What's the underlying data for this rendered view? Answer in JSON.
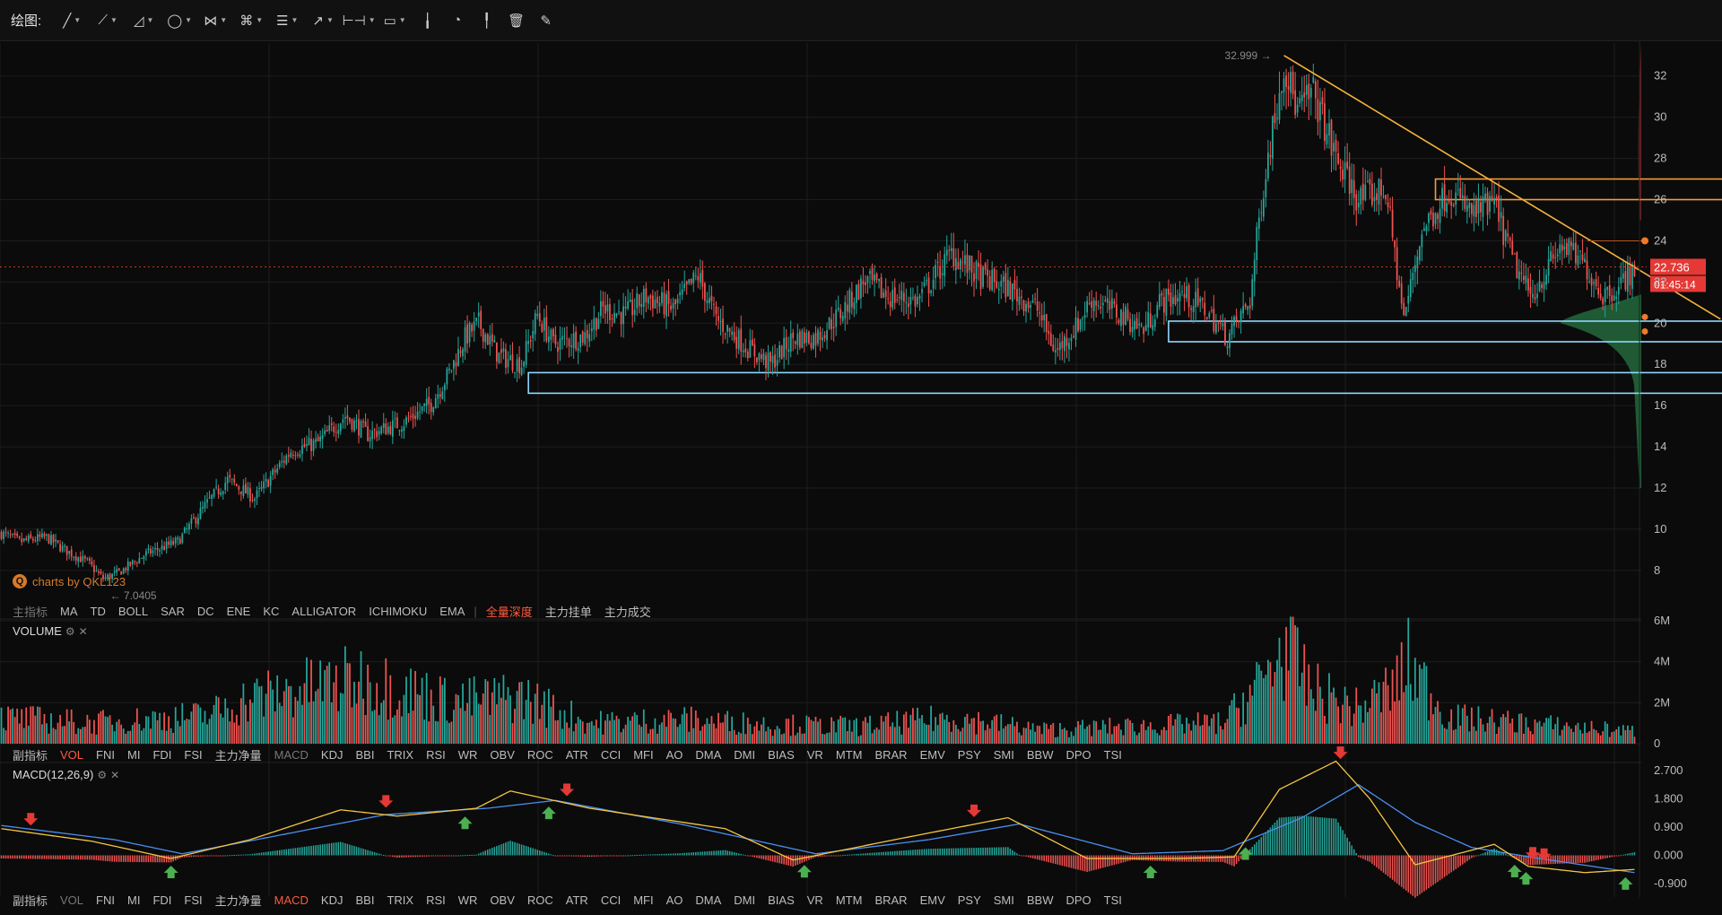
{
  "toolbar": {
    "label": "绘图:",
    "tools": [
      {
        "name": "line-tool-icon",
        "glyph": "╱",
        "caret": true
      },
      {
        "name": "multi-point-tool-icon",
        "glyph": "⟋",
        "caret": true
      },
      {
        "name": "channel-tool-icon",
        "glyph": "◿",
        "caret": true
      },
      {
        "name": "ellipse-tool-icon",
        "glyph": "◯",
        "caret": true
      },
      {
        "name": "wave-tool-icon",
        "glyph": "⋈",
        "caret": true
      },
      {
        "name": "pattern-tool-icon",
        "glyph": "⌘",
        "caret": true
      },
      {
        "name": "fibonacci-tool-icon",
        "glyph": "☰",
        "caret": true
      },
      {
        "name": "arrow-tool-icon",
        "glyph": "↗",
        "caret": true
      },
      {
        "name": "measure-tool-icon",
        "glyph": "⊢⊣",
        "caret": true
      },
      {
        "name": "comment-tool-icon",
        "glyph": "▭",
        "caret": true
      },
      {
        "name": "candle-style-icon",
        "glyph": "╽",
        "caret": false
      },
      {
        "name": "chart-settings-icon",
        "glyph": "◔",
        "caret": false
      },
      {
        "name": "bar-style-icon",
        "glyph": "╿",
        "caret": false
      },
      {
        "name": "trash-icon",
        "glyph": "🗑",
        "caret": false
      },
      {
        "name": "pen-icon",
        "glyph": "✎",
        "caret": false
      }
    ]
  },
  "chart_data": [
    {
      "type": "candlestick",
      "title": "",
      "ylim": [
        6.6,
        33.6
      ],
      "y_ticks": [
        "32",
        "30",
        "28",
        "26",
        "24",
        "22",
        "20",
        "18",
        "16",
        "14",
        "12",
        "10",
        "8"
      ],
      "high_label": "32.999",
      "low_label": "7.0405",
      "current_price": "22.736",
      "countdown": "01:45:14",
      "ohlc_anchors": [
        [
          0,
          9.8
        ],
        [
          8,
          9.4
        ],
        [
          20,
          9.6
        ],
        [
          28,
          9.0
        ],
        [
          38,
          8.4
        ],
        [
          45,
          7.6
        ],
        [
          52,
          7.9
        ],
        [
          64,
          8.8
        ],
        [
          78,
          9.4
        ],
        [
          92,
          11.4
        ],
        [
          100,
          12.4
        ],
        [
          112,
          11.5
        ],
        [
          128,
          13.8
        ],
        [
          140,
          14.2
        ],
        [
          152,
          15.5
        ],
        [
          162,
          14.6
        ],
        [
          178,
          15.2
        ],
        [
          190,
          16.1
        ],
        [
          198,
          17.6
        ],
        [
          205,
          19.3
        ],
        [
          211,
          20.0
        ],
        [
          220,
          18.4
        ],
        [
          230,
          18.0
        ],
        [
          237,
          20.4
        ],
        [
          244,
          19.0
        ],
        [
          258,
          19.4
        ],
        [
          266,
          20.7
        ],
        [
          276,
          20.4
        ],
        [
          285,
          21.3
        ],
        [
          297,
          20.7
        ],
        [
          308,
          22.3
        ],
        [
          316,
          20.2
        ],
        [
          330,
          18.8
        ],
        [
          340,
          18.0
        ],
        [
          350,
          19.3
        ],
        [
          360,
          19.3
        ],
        [
          372,
          20.6
        ],
        [
          382,
          22.1
        ],
        [
          392,
          21.3
        ],
        [
          405,
          21.1
        ],
        [
          420,
          23.4
        ],
        [
          432,
          22.3
        ],
        [
          445,
          21.7
        ],
        [
          458,
          20.7
        ],
        [
          466,
          18.6
        ],
        [
          475,
          19.8
        ],
        [
          482,
          21.2
        ],
        [
          495,
          20.4
        ],
        [
          505,
          19.7
        ],
        [
          512,
          21.0
        ],
        [
          522,
          21.4
        ],
        [
          532,
          20.7
        ],
        [
          542,
          19.3
        ],
        [
          552,
          21.1
        ],
        [
          557,
          26.0
        ],
        [
          562,
          29.5
        ],
        [
          567,
          32.6
        ],
        [
          573,
          30.3
        ],
        [
          580,
          31.2
        ],
        [
          590,
          28.0
        ],
        [
          600,
          26.0
        ],
        [
          612,
          26.5
        ],
        [
          620,
          20.2
        ],
        [
          628,
          24.5
        ],
        [
          640,
          26.5
        ],
        [
          650,
          25.3
        ],
        [
          660,
          25.8
        ],
        [
          668,
          23.1
        ],
        [
          676,
          21.3
        ],
        [
          690,
          23.8
        ],
        [
          700,
          22.8
        ],
        [
          708,
          21.4
        ],
        [
          715,
          21.8
        ],
        [
          722,
          22.7
        ]
      ],
      "annotations": {
        "trendline": {
          "from": [
            567,
            32.999
          ],
          "to": [
            760,
            20.2
          ]
        },
        "resistance_zone": {
          "x": [
            634,
            830
          ],
          "y": [
            26.0,
            27.0
          ]
        },
        "support_zone_1": {
          "x": [
            516,
            850
          ],
          "y": [
            19.1,
            20.1
          ]
        },
        "support_zone_2": {
          "x": [
            233,
            950
          ],
          "y": [
            16.6,
            17.6
          ]
        },
        "current_price_line": 22.736
      },
      "volume_profile_peak": 20.0
    },
    {
      "type": "bar",
      "title": "VOLUME",
      "ylim": [
        0,
        6000000
      ],
      "y_ticks": [
        "6M",
        "4M",
        "2M",
        "0"
      ],
      "volume_anchors": [
        [
          0,
          1.5
        ],
        [
          40,
          1.2
        ],
        [
          90,
          1.6
        ],
        [
          110,
          2.6
        ],
        [
          140,
          3.3
        ],
        [
          160,
          3.7
        ],
        [
          200,
          2.4
        ],
        [
          230,
          2.7
        ],
        [
          260,
          1.2
        ],
        [
          300,
          1.4
        ],
        [
          340,
          1.1
        ],
        [
          380,
          1.0
        ],
        [
          420,
          1.5
        ],
        [
          460,
          0.8
        ],
        [
          500,
          1.0
        ],
        [
          540,
          1.2
        ],
        [
          557,
          3.5
        ],
        [
          567,
          5.6
        ],
        [
          580,
          3.0
        ],
        [
          600,
          2.0
        ],
        [
          616,
          3.3
        ],
        [
          622,
          4.6
        ],
        [
          640,
          1.5
        ],
        [
          680,
          1.1
        ],
        [
          722,
          0.7
        ]
      ]
    },
    {
      "type": "line+histogram",
      "title": "MACD(12,26,9)",
      "ylim": [
        -1.1,
        2.9
      ],
      "y_ticks": [
        "2.700",
        "1.800",
        "0.900",
        "0.000",
        "-0.900"
      ],
      "dif_anchors": [
        [
          0,
          0.85
        ],
        [
          40,
          0.45
        ],
        [
          75,
          -0.1
        ],
        [
          110,
          0.5
        ],
        [
          150,
          1.45
        ],
        [
          175,
          1.25
        ],
        [
          210,
          1.5
        ],
        [
          225,
          2.05
        ],
        [
          260,
          1.5
        ],
        [
          320,
          0.85
        ],
        [
          350,
          -0.15
        ],
        [
          395,
          0.5
        ],
        [
          445,
          1.2
        ],
        [
          480,
          -0.1
        ],
        [
          520,
          -0.1
        ],
        [
          545,
          -0.05
        ],
        [
          565,
          2.1
        ],
        [
          590,
          3.0
        ],
        [
          605,
          1.8
        ],
        [
          625,
          -0.3
        ],
        [
          660,
          0.35
        ],
        [
          675,
          -0.35
        ],
        [
          700,
          -0.55
        ],
        [
          722,
          -0.45
        ]
      ],
      "dea_anchors": [
        [
          0,
          0.95
        ],
        [
          50,
          0.5
        ],
        [
          80,
          0.05
        ],
        [
          120,
          0.6
        ],
        [
          170,
          1.3
        ],
        [
          215,
          1.5
        ],
        [
          245,
          1.75
        ],
        [
          300,
          1.0
        ],
        [
          360,
          0.05
        ],
        [
          410,
          0.5
        ],
        [
          450,
          1.0
        ],
        [
          500,
          0.05
        ],
        [
          540,
          0.15
        ],
        [
          575,
          1.2
        ],
        [
          600,
          2.25
        ],
        [
          625,
          1.05
        ],
        [
          650,
          0.25
        ],
        [
          680,
          -0.1
        ],
        [
          722,
          -0.55
        ]
      ],
      "sell_signals_at": [
        13,
        170,
        250,
        430,
        592,
        677,
        682
      ],
      "buy_signals_at": [
        75,
        205,
        242,
        355,
        508,
        550,
        669,
        674,
        718
      ]
    }
  ],
  "indicator_bar_main": {
    "items": [
      {
        "label": "主指标",
        "style": "muted"
      },
      {
        "label": "MA",
        "style": ""
      },
      {
        "label": "TD",
        "style": ""
      },
      {
        "label": "BOLL",
        "style": ""
      },
      {
        "label": "SAR",
        "style": ""
      },
      {
        "label": "DC",
        "style": ""
      },
      {
        "label": "ENE",
        "style": ""
      },
      {
        "label": "KC",
        "style": ""
      },
      {
        "label": "ALLIGATOR",
        "style": ""
      },
      {
        "label": "ICHIMOKU",
        "style": ""
      },
      {
        "label": "EMA",
        "style": ""
      },
      {
        "label": "|",
        "style": "sep"
      },
      {
        "label": "全量深度",
        "style": "active"
      },
      {
        "label": "主力挂单",
        "style": ""
      },
      {
        "label": "主力成交",
        "style": ""
      }
    ]
  },
  "indicator_bar_sub1": {
    "items": [
      {
        "label": "副指标",
        "style": ""
      },
      {
        "label": "VOL",
        "style": "active"
      },
      {
        "label": "FNI",
        "style": ""
      },
      {
        "label": "MI",
        "style": ""
      },
      {
        "label": "FDI",
        "style": ""
      },
      {
        "label": "FSI",
        "style": ""
      },
      {
        "label": "主力净量",
        "style": ""
      },
      {
        "label": "MACD",
        "style": "muted"
      },
      {
        "label": "KDJ",
        "style": ""
      },
      {
        "label": "BBI",
        "style": ""
      },
      {
        "label": "TRIX",
        "style": ""
      },
      {
        "label": "RSI",
        "style": ""
      },
      {
        "label": "WR",
        "style": ""
      },
      {
        "label": "OBV",
        "style": ""
      },
      {
        "label": "ROC",
        "style": ""
      },
      {
        "label": "ATR",
        "style": ""
      },
      {
        "label": "CCI",
        "style": ""
      },
      {
        "label": "MFI",
        "style": ""
      },
      {
        "label": "AO",
        "style": ""
      },
      {
        "label": "DMA",
        "style": ""
      },
      {
        "label": "DMI",
        "style": ""
      },
      {
        "label": "BIAS",
        "style": ""
      },
      {
        "label": "VR",
        "style": ""
      },
      {
        "label": "MTM",
        "style": ""
      },
      {
        "label": "BRAR",
        "style": ""
      },
      {
        "label": "EMV",
        "style": ""
      },
      {
        "label": "PSY",
        "style": ""
      },
      {
        "label": "SMI",
        "style": ""
      },
      {
        "label": "BBW",
        "style": ""
      },
      {
        "label": "DPO",
        "style": ""
      },
      {
        "label": "TSI",
        "style": ""
      }
    ]
  },
  "indicator_bar_sub2": {
    "items": [
      {
        "label": "副指标",
        "style": ""
      },
      {
        "label": "VOL",
        "style": "muted"
      },
      {
        "label": "FNI",
        "style": ""
      },
      {
        "label": "MI",
        "style": ""
      },
      {
        "label": "FDI",
        "style": ""
      },
      {
        "label": "FSI",
        "style": ""
      },
      {
        "label": "主力净量",
        "style": ""
      },
      {
        "label": "MACD",
        "style": "active"
      },
      {
        "label": "KDJ",
        "style": ""
      },
      {
        "label": "BBI",
        "style": ""
      },
      {
        "label": "TRIX",
        "style": ""
      },
      {
        "label": "RSI",
        "style": ""
      },
      {
        "label": "WR",
        "style": ""
      },
      {
        "label": "OBV",
        "style": ""
      },
      {
        "label": "ROC",
        "style": ""
      },
      {
        "label": "ATR",
        "style": ""
      },
      {
        "label": "CCI",
        "style": ""
      },
      {
        "label": "MFI",
        "style": ""
      },
      {
        "label": "AO",
        "style": ""
      },
      {
        "label": "DMA",
        "style": ""
      },
      {
        "label": "DMI",
        "style": ""
      },
      {
        "label": "BIAS",
        "style": ""
      },
      {
        "label": "VR",
        "style": ""
      },
      {
        "label": "MTM",
        "style": ""
      },
      {
        "label": "BRAR",
        "style": ""
      },
      {
        "label": "EMV",
        "style": ""
      },
      {
        "label": "PSY",
        "style": ""
      },
      {
        "label": "SMI",
        "style": ""
      },
      {
        "label": "BBW",
        "style": ""
      },
      {
        "label": "DPO",
        "style": ""
      },
      {
        "label": "TSI",
        "style": ""
      }
    ]
  },
  "watermark": "charts by QKL123",
  "colors": {
    "up": "#26a69a",
    "down": "#ef5350",
    "trend": "#f5b33a",
    "support": "#8fd8ff",
    "resistance": "#f59b3a",
    "dif": "#f5c542",
    "dea": "#4a8ff0"
  }
}
